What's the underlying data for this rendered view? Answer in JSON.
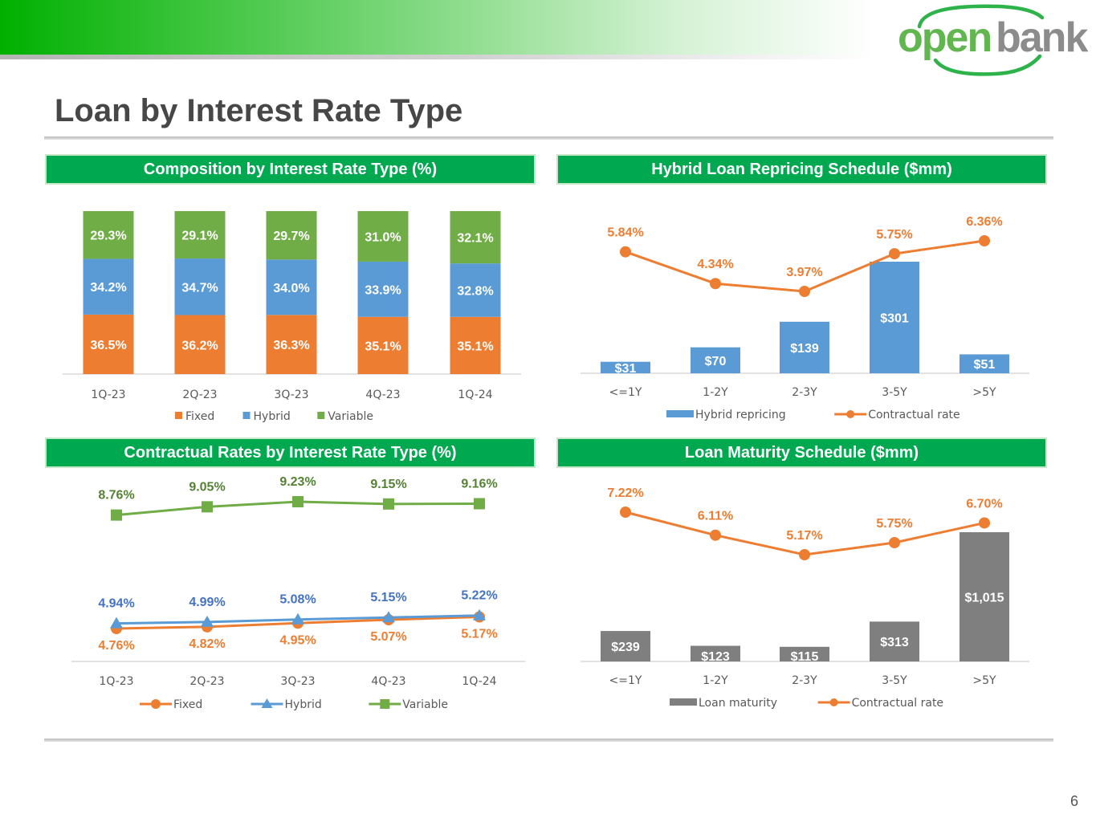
{
  "header": {
    "title": "Loan by Interest Rate Type",
    "brand": "openbank",
    "page_number": "6"
  },
  "colors": {
    "fixed": "#ed7d31",
    "hybrid": "#5b9bd5",
    "variable": "#70ad47",
    "maturity": "#7f7f7f",
    "header_green": "#00a94f",
    "hybrid_label": "#4472c4",
    "variable_label": "#548235"
  },
  "chart_data": [
    {
      "title": "Composition by Interest Rate Type (%)",
      "type": "bar",
      "stacked": true,
      "categories": [
        "1Q-23",
        "2Q-23",
        "3Q-23",
        "4Q-23",
        "1Q-24"
      ],
      "series": [
        {
          "name": "Fixed",
          "values": [
            36.5,
            36.2,
            36.3,
            35.1,
            35.1
          ],
          "labels": [
            "36.5%",
            "36.2%",
            "36.3%",
            "35.1%",
            "35.1%"
          ]
        },
        {
          "name": "Hybrid",
          "values": [
            34.2,
            34.7,
            34.0,
            33.9,
            32.8
          ],
          "labels": [
            "34.2%",
            "34.7%",
            "34.0%",
            "33.9%",
            "32.8%"
          ]
        },
        {
          "name": "Variable",
          "values": [
            29.3,
            29.1,
            29.7,
            31.0,
            32.1
          ],
          "labels": [
            "29.3%",
            "29.1%",
            "29.7%",
            "31.0%",
            "32.1%"
          ]
        }
      ],
      "ylim": [
        0,
        100
      ],
      "legend": "bottom",
      "grid": false
    },
    {
      "title": "Hybrid Loan Repricing Schedule ($mm)",
      "type": "bar",
      "categories": [
        "<=1Y",
        "1-2Y",
        "2-3Y",
        "3-5Y",
        ">5Y"
      ],
      "series": [
        {
          "name": "Hybrid repricing",
          "type": "bar",
          "values": [
            31,
            70,
            139,
            301,
            51
          ],
          "labels": [
            "$31",
            "$70",
            "$139",
            "$301",
            "$51"
          ]
        },
        {
          "name": "Contractual rate",
          "type": "line",
          "values": [
            5.84,
            4.34,
            3.97,
            5.75,
            6.36
          ],
          "labels": [
            "5.84%",
            "4.34%",
            "3.97%",
            "5.75%",
            "6.36%"
          ]
        }
      ],
      "legend": "bottom",
      "grid": false
    },
    {
      "title": "Contractual Rates by Interest Rate Type (%)",
      "type": "line",
      "categories": [
        "1Q-23",
        "2Q-23",
        "3Q-23",
        "4Q-23",
        "1Q-24"
      ],
      "series": [
        {
          "name": "Fixed",
          "values": [
            4.76,
            4.82,
            4.95,
            5.07,
            5.17
          ],
          "labels": [
            "4.76%",
            "4.82%",
            "4.95%",
            "5.07%",
            "5.17%"
          ]
        },
        {
          "name": "Hybrid",
          "values": [
            4.94,
            4.99,
            5.08,
            5.15,
            5.22
          ],
          "labels": [
            "4.94%",
            "4.99%",
            "5.08%",
            "5.15%",
            "5.22%"
          ]
        },
        {
          "name": "Variable",
          "values": [
            8.76,
            9.05,
            9.23,
            9.15,
            9.16
          ],
          "labels": [
            "8.76%",
            "9.05%",
            "9.23%",
            "9.15%",
            "9.16%"
          ]
        }
      ],
      "legend": "bottom",
      "grid": false
    },
    {
      "title": "Loan Maturity Schedule ($mm)",
      "type": "bar",
      "categories": [
        "<=1Y",
        "1-2Y",
        "2-3Y",
        "3-5Y",
        ">5Y"
      ],
      "series": [
        {
          "name": "Loan maturity",
          "type": "bar",
          "values": [
            239,
            123,
            115,
            313,
            1015
          ],
          "labels": [
            "$239",
            "$123",
            "$115",
            "$313",
            "$1,015"
          ]
        },
        {
          "name": "Contractual rate",
          "type": "line",
          "values": [
            7.22,
            6.11,
            5.17,
            5.75,
            6.7
          ],
          "labels": [
            "7.22%",
            "6.11%",
            "5.17%",
            "5.75%",
            "6.70%"
          ]
        }
      ],
      "legend": "bottom",
      "grid": false
    }
  ]
}
